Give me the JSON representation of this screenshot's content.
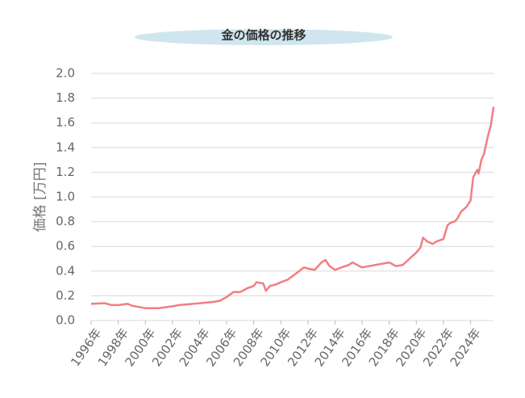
{
  "chart_data": {
    "type": "line",
    "title": "金の価格の推移",
    "ylabel": "価格 [万円]",
    "x": [
      1996,
      1997,
      1997.5,
      1998,
      1998.7,
      1999,
      1999.5,
      2000,
      2001,
      2002,
      2002.5,
      2003,
      2004,
      2005,
      2005.5,
      2006,
      2006.5,
      2007,
      2007.5,
      2008,
      2008.2,
      2008.7,
      2008.9,
      2009.2,
      2009.6,
      2010,
      2010.5,
      2011,
      2011.7,
      2012,
      2012.5,
      2013,
      2013.3,
      2013.6,
      2014,
      2014.5,
      2015,
      2015.3,
      2015.8,
      2016,
      2016.5,
      2017,
      2017.5,
      2018,
      2018.5,
      2019,
      2019.5,
      2020,
      2020.3,
      2020.5,
      2020.8,
      2021.2,
      2021.5,
      2022,
      2022.3,
      2022.5,
      2022.8,
      2023,
      2023.3,
      2023.7,
      2024,
      2024.2,
      2024.5,
      2024.6,
      2024.8,
      2025,
      2025.3,
      2025.5,
      2025.7
    ],
    "series": [
      {
        "name": "価格",
        "color": "#f27e81",
        "values": [
          0.135,
          0.14,
          0.125,
          0.125,
          0.135,
          0.12,
          0.11,
          0.1,
          0.1,
          0.115,
          0.125,
          0.13,
          0.14,
          0.15,
          0.16,
          0.19,
          0.23,
          0.23,
          0.26,
          0.28,
          0.31,
          0.3,
          0.24,
          0.28,
          0.29,
          0.31,
          0.33,
          0.37,
          0.43,
          0.42,
          0.41,
          0.47,
          0.49,
          0.44,
          0.41,
          0.43,
          0.45,
          0.47,
          0.44,
          0.43,
          0.44,
          0.45,
          0.46,
          0.47,
          0.44,
          0.45,
          0.5,
          0.55,
          0.59,
          0.67,
          0.64,
          0.62,
          0.64,
          0.66,
          0.77,
          0.79,
          0.8,
          0.82,
          0.88,
          0.92,
          0.97,
          1.16,
          1.22,
          1.19,
          1.3,
          1.35,
          1.5,
          1.58,
          1.73
        ]
      }
    ],
    "xlim": [
      1996,
      2025.7
    ],
    "xticks": [
      {
        "value": 1996,
        "label": "1996年"
      },
      {
        "value": 1998,
        "label": "1998年"
      },
      {
        "value": 2000,
        "label": "2000年"
      },
      {
        "value": 2002,
        "label": "2002年"
      },
      {
        "value": 2004,
        "label": "2004年"
      },
      {
        "value": 2006,
        "label": "2006年"
      },
      {
        "value": 2008,
        "label": "2008年"
      },
      {
        "value": 2010,
        "label": "2010年"
      },
      {
        "value": 2012,
        "label": "2012年"
      },
      {
        "value": 2014,
        "label": "2014年"
      },
      {
        "value": 2016,
        "label": "2016年"
      },
      {
        "value": 2018,
        "label": "2018年"
      },
      {
        "value": 2020,
        "label": "2020年"
      },
      {
        "value": 2022,
        "label": "2022年"
      },
      {
        "value": 2024,
        "label": "2024年"
      }
    ],
    "ylim": [
      0,
      2
    ],
    "yticks": [
      {
        "value": 0,
        "label": "0.0"
      },
      0.2,
      0.4,
      0.6,
      0.8,
      {
        "value": 1,
        "label": "1.0"
      },
      1.2,
      1.4,
      1.6,
      1.8,
      {
        "value": 2,
        "label": "2.0"
      }
    ],
    "grid": true
  }
}
